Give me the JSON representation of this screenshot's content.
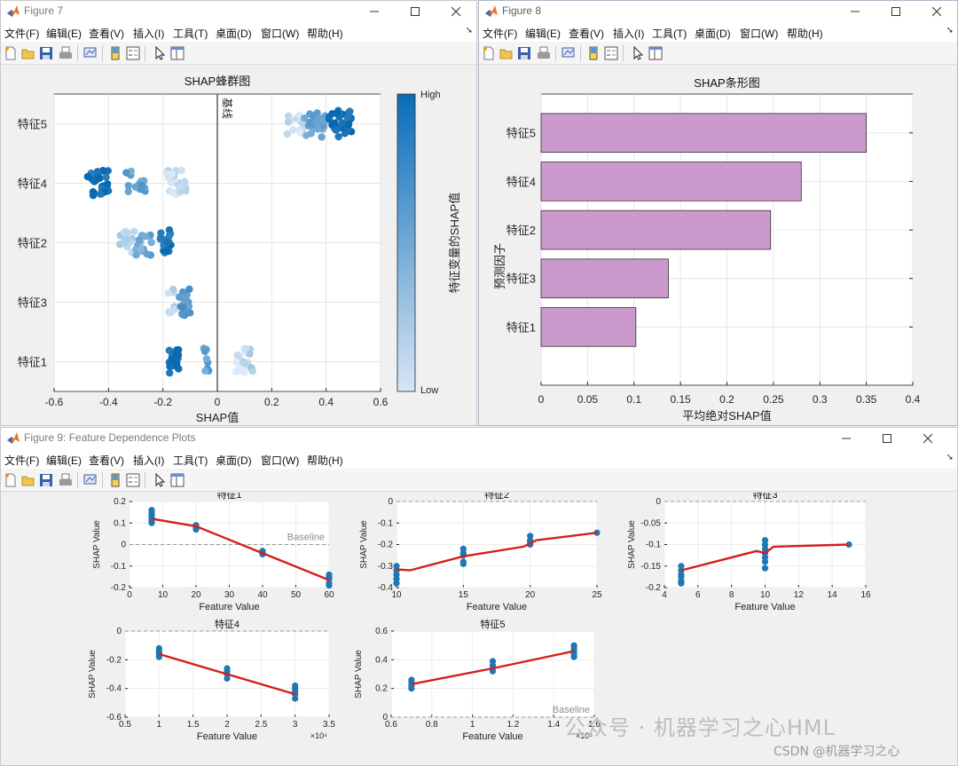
{
  "windows": {
    "fig7": {
      "title": "Figure 7"
    },
    "fig8": {
      "title": "Figure 8"
    },
    "fig9": {
      "title": "Figure 9: Feature Dependence Plots"
    }
  },
  "menu": [
    "文件(F)",
    "编辑(E)",
    "查看(V)",
    "插入(I)",
    "工具(T)",
    "桌面(D)",
    "窗口(W)",
    "帮助(H)"
  ],
  "toolbar_icons": [
    "new-figure-icon",
    "open-file-icon",
    "save-icon",
    "print-icon",
    "link-plot-icon",
    "insert-colorbar-icon",
    "insert-legend-icon",
    "edit-plot-icon",
    "property-inspector-icon"
  ],
  "colors": {
    "dark_blue": "#0a6cb8",
    "mid_blue": "#5ea4d6",
    "light_blue": "#d6e6f4",
    "bar_fill": "#cc99cc",
    "trend_red": "#d21f1f",
    "point_blue": "#1f77b4"
  },
  "chart_data": [
    {
      "type": "scatter",
      "title": "SHAP蜂群图",
      "xlabel": "SHAP值",
      "xlim": [
        -0.6,
        0.6
      ],
      "xticks": [
        "-0.6",
        "-0.4",
        "-0.2",
        "0",
        "0.2",
        "0.4",
        "0.6"
      ],
      "categories": [
        "特征5",
        "特征4",
        "特征2",
        "特征3",
        "特征1"
      ],
      "baseline_label": "基线",
      "colorbar": {
        "label": "特征变量的SHAP值",
        "high": "High",
        "low": "Low"
      },
      "groups": [
        {
          "feature": "特征5",
          "clusters": [
            {
              "x": 0.28,
              "spread": 0.035,
              "level": 0.1,
              "n": 14
            },
            {
              "x": 0.36,
              "spread": 0.04,
              "level": 0.55,
              "n": 24
            },
            {
              "x": 0.46,
              "spread": 0.05,
              "level": 0.95,
              "n": 28
            }
          ]
        },
        {
          "feature": "特征4",
          "clusters": [
            {
              "x": -0.44,
              "spread": 0.04,
              "level": 0.95,
              "n": 26
            },
            {
              "x": -0.3,
              "spread": 0.035,
              "level": 0.55,
              "n": 16
            },
            {
              "x": -0.15,
              "spread": 0.035,
              "level": 0.12,
              "n": 22
            }
          ]
        },
        {
          "feature": "特征2",
          "clusters": [
            {
              "x": -0.33,
              "spread": 0.03,
              "level": 0.15,
              "n": 14
            },
            {
              "x": -0.27,
              "spread": 0.03,
              "level": 0.5,
              "n": 16
            },
            {
              "x": -0.19,
              "spread": 0.02,
              "level": 0.9,
              "n": 18
            }
          ]
        },
        {
          "feature": "特征3",
          "clusters": [
            {
              "x": -0.17,
              "spread": 0.015,
              "level": 0.15,
              "n": 10
            },
            {
              "x": -0.12,
              "spread": 0.02,
              "level": 0.6,
              "n": 18
            }
          ]
        },
        {
          "feature": "特征1",
          "clusters": [
            {
              "x": -0.16,
              "spread": 0.02,
              "level": 0.95,
              "n": 22
            },
            {
              "x": -0.04,
              "spread": 0.01,
              "level": 0.55,
              "n": 10
            },
            {
              "x": 0.09,
              "spread": 0.025,
              "level": 0.1,
              "n": 18
            },
            {
              "x": 0.12,
              "spread": 0.02,
              "level": 0.2,
              "n": 8
            }
          ]
        }
      ]
    },
    {
      "type": "bar",
      "title": "SHAP条形图",
      "xlabel": "平均绝对SHAP值",
      "ylabel": "预测因子",
      "xlim": [
        0,
        0.4
      ],
      "xticks": [
        "0",
        "0.05",
        "0.1",
        "0.15",
        "0.2",
        "0.25",
        "0.3",
        "0.35",
        "0.4"
      ],
      "categories": [
        "特征5",
        "特征4",
        "特征2",
        "特征3",
        "特征1"
      ],
      "values": [
        0.35,
        0.28,
        0.247,
        0.137,
        0.102
      ]
    },
    {
      "type": "scatter",
      "title": "特征1",
      "xlabel": "Feature Value",
      "ylabel": "SHAP Value",
      "xlim": [
        0,
        63
      ],
      "ylim": [
        -0.2,
        0.2
      ],
      "xticks": [
        "0",
        "10",
        "20",
        "30",
        "40",
        "50",
        "60"
      ],
      "yticks": [
        "0.2",
        "0.1",
        "0",
        "-0.1",
        "-0.2"
      ],
      "baseline": 0,
      "baseline_label": "Baseline",
      "points": [
        {
          "x": 7,
          "ys": [
            0.1,
            0.16,
            0.14,
            0.12,
            0.11,
            0.15,
            0.13
          ]
        },
        {
          "x": 21,
          "ys": [
            0.07,
            0.09,
            0.08,
            0.075
          ]
        },
        {
          "x": 42,
          "ys": [
            -0.03,
            -0.045,
            -0.04
          ]
        },
        {
          "x": 63,
          "ys": [
            -0.14,
            -0.18,
            -0.16,
            -0.19,
            -0.15
          ]
        }
      ],
      "trend": [
        [
          7,
          0.12
        ],
        [
          21,
          0.085
        ],
        [
          42,
          -0.04
        ],
        [
          63,
          -0.165
        ]
      ]
    },
    {
      "type": "scatter",
      "title": "特征2",
      "xlabel": "Feature Value",
      "ylabel": "SHAP Value",
      "xlim": [
        10,
        25
      ],
      "ylim": [
        -0.4,
        0
      ],
      "xticks": [
        "10",
        "15",
        "20",
        "25"
      ],
      "yticks": [
        "0",
        "-0.1",
        "-0.2",
        "-0.3",
        "-0.4"
      ],
      "baseline": 0,
      "points": [
        {
          "x": 10,
          "ys": [
            -0.3,
            -0.34,
            -0.36,
            -0.32,
            -0.38
          ]
        },
        {
          "x": 15,
          "ys": [
            -0.22,
            -0.25,
            -0.28,
            -0.24,
            -0.29
          ]
        },
        {
          "x": 20,
          "ys": [
            -0.16,
            -0.18,
            -0.2,
            -0.19
          ]
        },
        {
          "x": 25,
          "ys": [
            -0.145
          ]
        }
      ],
      "trend": [
        [
          10,
          -0.315
        ],
        [
          11,
          -0.32
        ],
        [
          15,
          -0.255
        ],
        [
          19.5,
          -0.21
        ],
        [
          20.5,
          -0.18
        ],
        [
          25,
          -0.145
        ]
      ]
    },
    {
      "type": "scatter",
      "title": "特征3",
      "xlabel": "Feature Value",
      "ylabel": "SHAP Value",
      "xlim": [
        4,
        16
      ],
      "ylim": [
        -0.2,
        0
      ],
      "xticks": [
        "4",
        "6",
        "8",
        "10",
        "12",
        "14",
        "16"
      ],
      "yticks": [
        "0",
        "-0.05",
        "-0.1",
        "-0.15",
        "-0.2"
      ],
      "baseline": 0,
      "points": [
        {
          "x": 5,
          "ys": [
            -0.15,
            -0.17,
            -0.185,
            -0.16,
            -0.175,
            -0.19
          ]
        },
        {
          "x": 10,
          "ys": [
            -0.09,
            -0.11,
            -0.12,
            -0.14,
            -0.1,
            -0.13,
            -0.155
          ]
        },
        {
          "x": 15,
          "ys": [
            -0.1
          ]
        }
      ],
      "trend": [
        [
          5,
          -0.16
        ],
        [
          9.5,
          -0.115
        ],
        [
          10,
          -0.12
        ],
        [
          10.5,
          -0.105
        ],
        [
          15,
          -0.1
        ]
      ]
    },
    {
      "type": "scatter",
      "title": "特征4",
      "xlabel": "Feature Value",
      "ylabel": "SHAP Value",
      "xlim": [
        5000,
        35000
      ],
      "ylim": [
        -0.6,
        0
      ],
      "xticks": [
        "0.5",
        "1",
        "1.5",
        "2",
        "2.5",
        "3",
        "3.5"
      ],
      "yticks": [
        "0",
        "-0.2",
        "-0.4",
        "-0.6"
      ],
      "xexponent": "×10⁴",
      "baseline": 0,
      "points": [
        {
          "x": 10000,
          "ys": [
            -0.12,
            -0.15,
            -0.18,
            -0.14,
            -0.16
          ]
        },
        {
          "x": 20000,
          "ys": [
            -0.26,
            -0.3,
            -0.33,
            -0.28
          ]
        },
        {
          "x": 30000,
          "ys": [
            -0.4,
            -0.44,
            -0.47,
            -0.42,
            -0.38
          ]
        }
      ],
      "trend": [
        [
          10000,
          -0.16
        ],
        [
          20000,
          -0.3
        ],
        [
          30000,
          -0.44
        ]
      ]
    },
    {
      "type": "scatter",
      "title": "特征5",
      "xlabel": "Feature Value",
      "ylabel": "SHAP Value",
      "xlim": [
        60000,
        160000
      ],
      "ylim": [
        0,
        0.6
      ],
      "xticks": [
        "0.6",
        "0.8",
        "1",
        "1.2",
        "1.4",
        "1.6"
      ],
      "yticks": [
        "0.6",
        "0.4",
        "0.2",
        "0"
      ],
      "xexponent": "×10⁵",
      "baseline": 0,
      "baseline_label": "Baseline",
      "points": [
        {
          "x": 70000,
          "ys": [
            0.2,
            0.24,
            0.26,
            0.22
          ]
        },
        {
          "x": 110000,
          "ys": [
            0.32,
            0.36,
            0.39,
            0.34
          ]
        },
        {
          "x": 150000,
          "ys": [
            0.42,
            0.46,
            0.5,
            0.48,
            0.44
          ]
        }
      ],
      "trend": [
        [
          70000,
          0.23
        ],
        [
          110000,
          0.34
        ],
        [
          150000,
          0.46
        ]
      ]
    }
  ],
  "watermark": {
    "main": "公众号 · 机器学习之心HML",
    "sub": "CSDN @机器学习之心"
  }
}
